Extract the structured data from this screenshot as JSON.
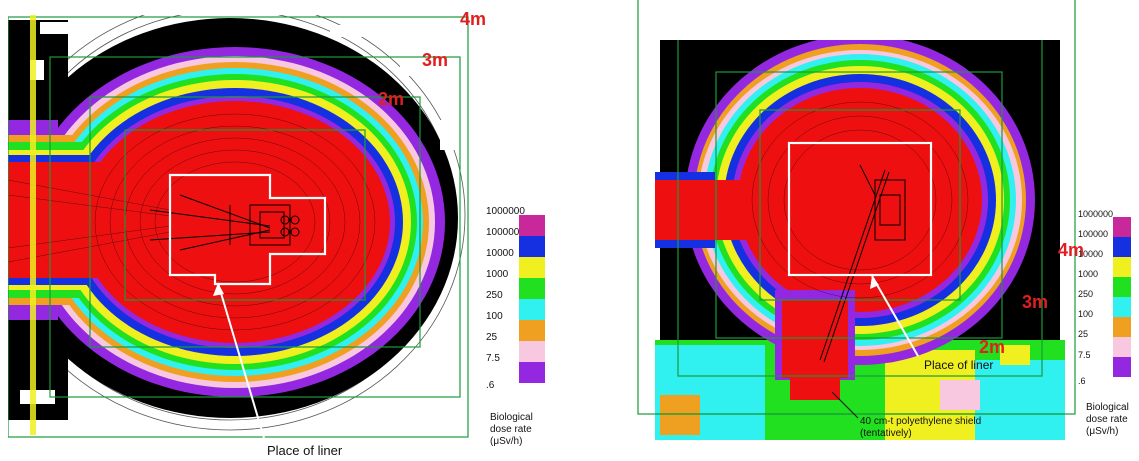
{
  "colors": {
    "c1000000": "#c8289a",
    "c100000": "#e8e8e8",
    "c10000": "#1530e0",
    "c1000": "#f0f020",
    "c250": "#20e020",
    "c100": "#30f0f0",
    "c25": "#f0a020",
    "c7_5": "#f8c8e0",
    "c_6": "#9428e0",
    "core": "#ee1010",
    "black": "#000000",
    "frame": "#1a9a3a",
    "dist_label": "#e02020"
  },
  "left_panel": {
    "distance_labels": [
      "4m",
      "3m",
      "2m"
    ],
    "callout": "Place of liner",
    "legend": {
      "ticks": [
        "1000000",
        "100000",
        "10000",
        "1000",
        "250",
        "100",
        "25",
        "7.5",
        ".6"
      ],
      "caption_lines": [
        "Biological",
        "dose rate",
        "(μSv/h)"
      ]
    }
  },
  "right_panel": {
    "distance_labels": [
      "4m",
      "3m",
      "2m"
    ],
    "callout": "Place of liner",
    "shield_note_lines": [
      "40 cm-t polyethylene shield",
      "(tentatively)"
    ],
    "legend": {
      "ticks": [
        "1000000",
        "100000",
        "10000",
        "1000",
        "250",
        "100",
        "25",
        "7.5",
        ".6"
      ],
      "caption_lines": [
        "Biological",
        "dose rate",
        "(μSv/h)"
      ]
    }
  }
}
